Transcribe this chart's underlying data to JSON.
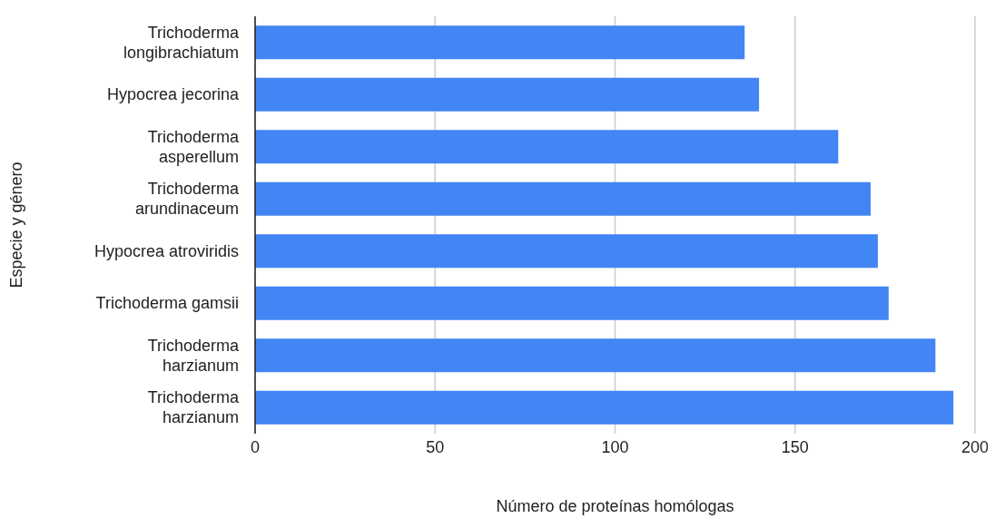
{
  "chart_data": {
    "type": "bar",
    "orientation": "horizontal",
    "xlabel": "Número de proteínas homólogas",
    "ylabel": "Especie y género",
    "categories": [
      "Trichoderma longibrachiatum",
      "Hypocrea jecorina",
      "Trichoderma asperellum",
      "Trichoderma arundinaceum",
      "Hypocrea atroviridis",
      "Trichoderma gamsii",
      "Trichoderma harzianum",
      "Trichoderma harzianum"
    ],
    "values": [
      136,
      140,
      162,
      171,
      173,
      176,
      189,
      194
    ],
    "color": "#4285f4",
    "xlim": [
      0,
      200
    ],
    "xticks": [
      0,
      50,
      100,
      150,
      200
    ],
    "grid": "x"
  }
}
